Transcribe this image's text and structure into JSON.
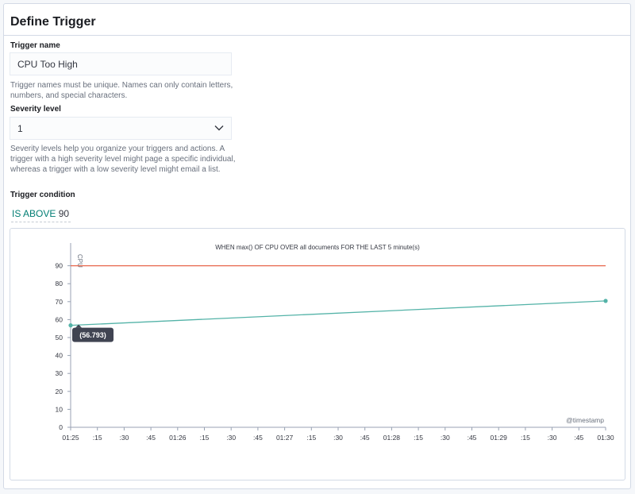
{
  "panel": {
    "title": "Define Trigger"
  },
  "trigger_name": {
    "label": "Trigger name",
    "value": "CPU Too High",
    "help": "Trigger names must be unique. Names can only contain letters, numbers, and special characters."
  },
  "severity": {
    "label": "Severity level",
    "value": "1",
    "help": "Severity levels help you organize your triggers and actions. A trigger with a high severity level might page a specific individual, whereas a trigger with a low severity level might email a list."
  },
  "condition": {
    "label": "Trigger condition",
    "operator": "IS ABOVE",
    "threshold": "90"
  },
  "chart_data": {
    "type": "line",
    "title": "WHEN max() OF CPU OVER all documents FOR THE LAST 5 minute(s)",
    "ylabel": "CPU",
    "xlabel": "@timestamp",
    "ylim": [
      0,
      100
    ],
    "yticks": [
      0,
      10,
      20,
      30,
      40,
      50,
      60,
      70,
      80,
      90
    ],
    "xticks": [
      "01:25",
      ":15",
      ":30",
      ":45",
      "01:26",
      ":15",
      ":30",
      ":45",
      "01:27",
      ":15",
      ":30",
      ":45",
      "01:28",
      ":15",
      ":30",
      ":45",
      "01:29",
      ":15",
      ":30",
      ":45",
      "01:30"
    ],
    "series": [
      {
        "values": [
          56.793,
          70.4
        ],
        "x": [
          "01:25",
          "01:30"
        ],
        "color": "#54b3a8"
      }
    ],
    "threshold": {
      "value": 90,
      "color": "#e7664c"
    },
    "tooltip": "(56.793)",
    "grid": false
  }
}
